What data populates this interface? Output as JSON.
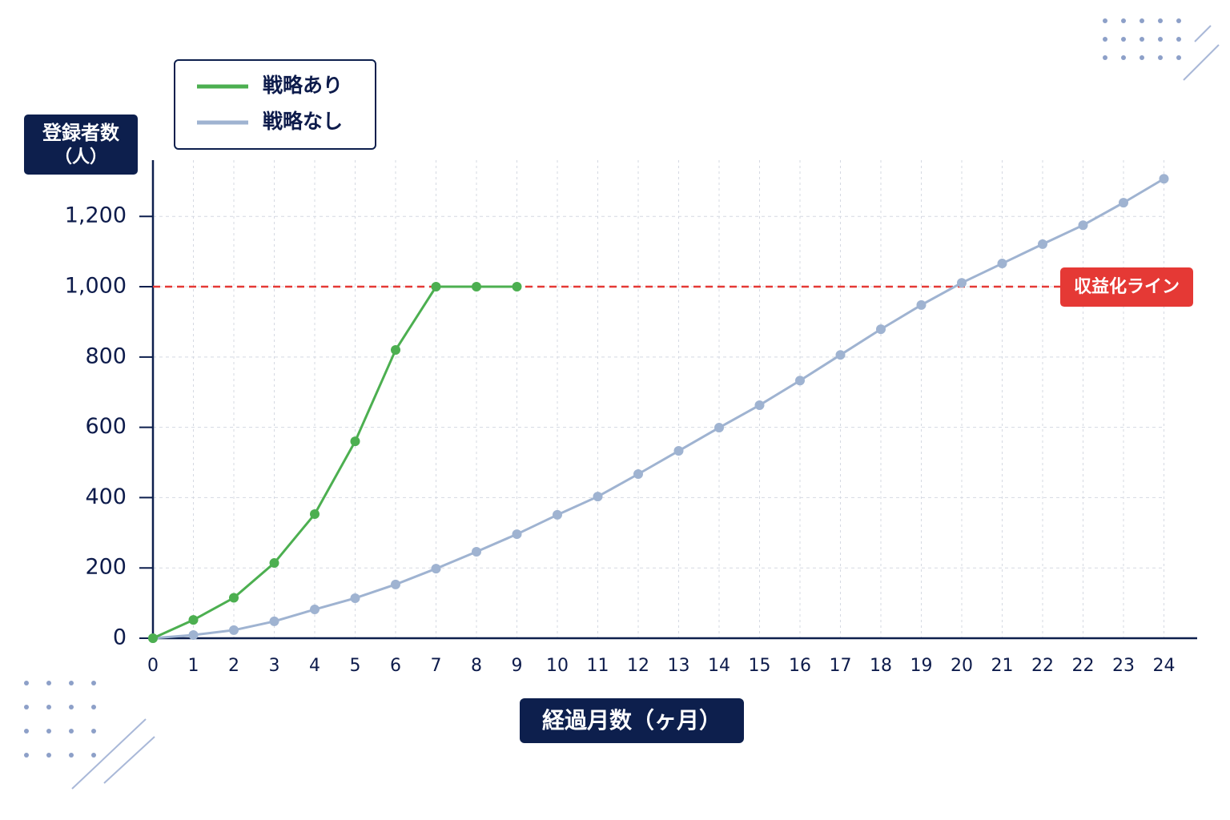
{
  "chart_data": {
    "type": "line",
    "categories": [
      "0",
      "1",
      "2",
      "3",
      "4",
      "5",
      "6",
      "7",
      "8",
      "9",
      "10",
      "11",
      "12",
      "13",
      "14",
      "15",
      "16",
      "17",
      "18",
      "19",
      "20",
      "21",
      "22",
      "22",
      "23",
      "24"
    ],
    "series": [
      {
        "name": "戦略あり",
        "color": "#4caf50",
        "values": [
          0,
          52,
          115,
          214,
          353,
          560,
          820,
          1000,
          1000,
          1000,
          null,
          null,
          null,
          null,
          null,
          null,
          null,
          null,
          null,
          null,
          null,
          null,
          null,
          null,
          null,
          null
        ]
      },
      {
        "name": "戦略なし",
        "color": "#9fb3d1",
        "values": [
          0,
          9,
          23,
          48,
          82,
          114,
          153,
          198,
          246,
          296,
          351,
          403,
          467,
          533,
          599,
          663,
          733,
          806,
          879,
          948,
          1011,
          1066,
          1121,
          1175,
          1239,
          1307
        ]
      }
    ],
    "ylim": [
      0,
      1360
    ],
    "yticks": [
      0,
      200,
      400,
      600,
      800,
      {
        "value": 1000,
        "label": "1,000"
      },
      {
        "value": 1200,
        "label": "1,200"
      }
    ],
    "threshold": {
      "value": 1000,
      "label": "収益化ライン",
      "color": "#e53935"
    },
    "y_label": [
      "登録者数",
      "（人）"
    ],
    "x_label": "経過月数（ヶ月）",
    "grid": true,
    "legend": "top-left"
  }
}
